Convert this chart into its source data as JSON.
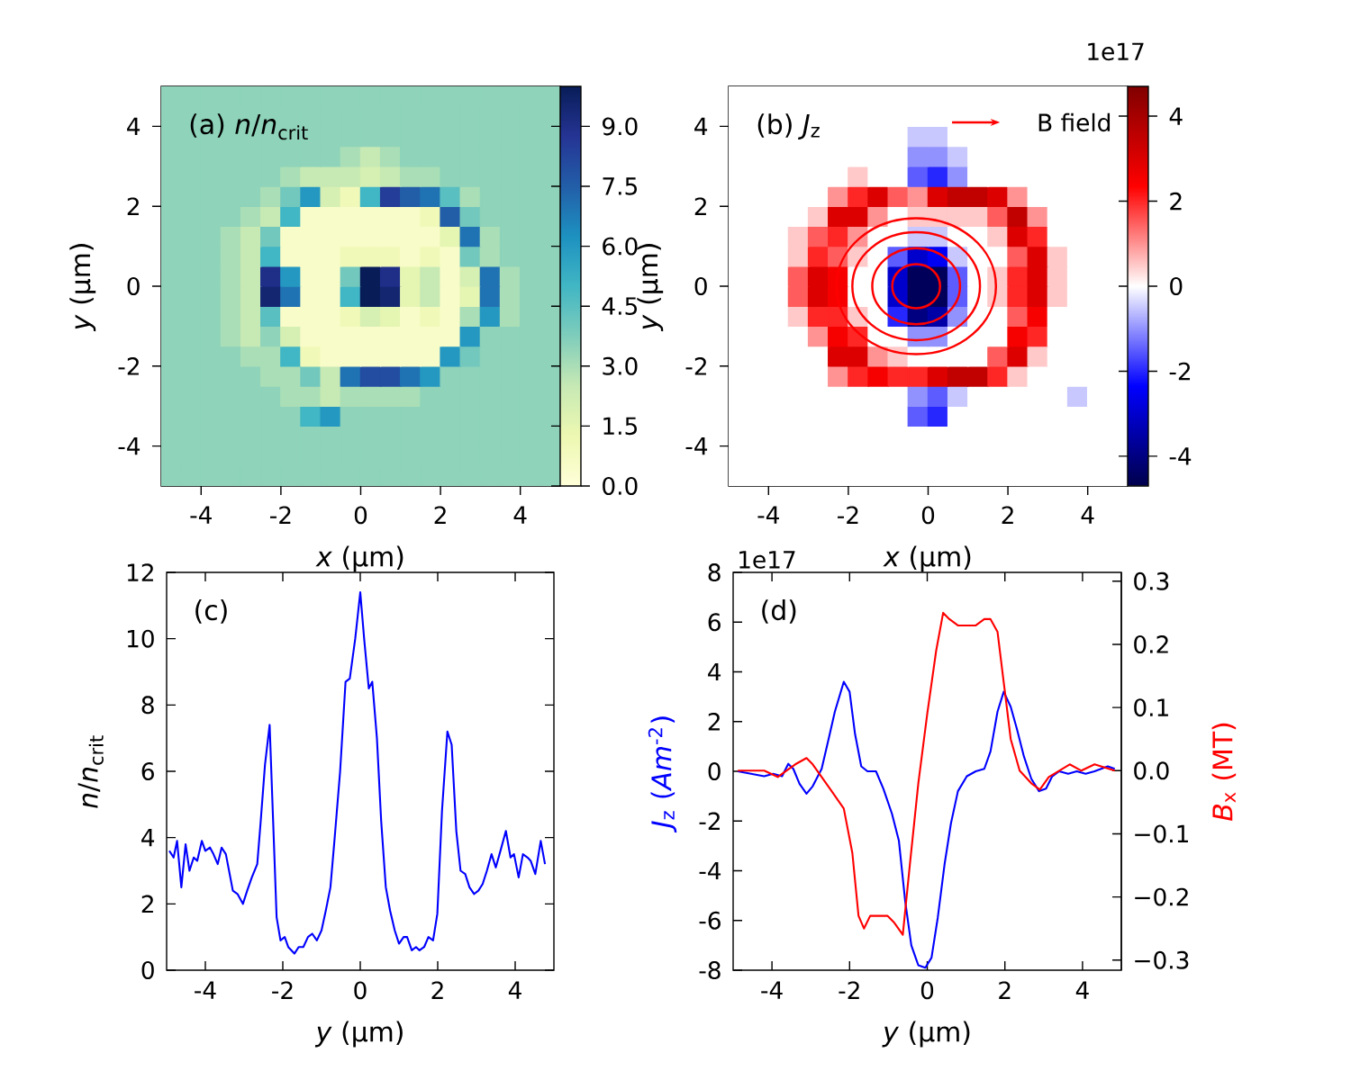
{
  "chart_data": [
    {
      "type": "heatmap",
      "title": "(a) *n*/*n*$_{crit}$",
      "xlabel": "*x* (μm)",
      "ylabel": "*y* (μm)",
      "xlim": [
        -5,
        5
      ],
      "ylim": [
        -5,
        5
      ],
      "xticks": [
        -4,
        -2,
        0,
        2,
        4
      ],
      "yticks": [
        -4,
        -2,
        0,
        2,
        4
      ],
      "clim": [
        0,
        10
      ],
      "cticks": [
        {
          "value": 0,
          "label": "0.0"
        },
        {
          "value": 1.5,
          "label": "1.5"
        },
        {
          "value": 3,
          "label": "3.0"
        },
        {
          "value": 4.5,
          "label": "4.5"
        },
        {
          "value": 6,
          "label": "6.0"
        },
        {
          "value": 7.5,
          "label": "7.5"
        },
        {
          "value": 9,
          "label": "9.0"
        }
      ],
      "cells": [
        [
          3.5,
          3.5,
          3.5,
          3.5,
          3.5,
          3.5,
          3.5,
          3.5,
          3.5,
          3.5,
          3.5,
          3.5,
          3.5,
          3.5,
          3.5,
          3.5,
          3.5,
          3.5,
          3.5,
          3.5
        ],
        [
          3.5,
          3.5,
          3.5,
          3.5,
          3.5,
          3.5,
          3.5,
          3.5,
          3.5,
          3.5,
          3.5,
          3.5,
          3.5,
          3.5,
          3.5,
          3.5,
          3.5,
          3.5,
          3.5,
          3.5
        ],
        [
          3.5,
          3.5,
          3.5,
          3.5,
          3.5,
          3.5,
          3.5,
          3.5,
          3.5,
          3.5,
          3.5,
          3.5,
          3.5,
          3.5,
          3.5,
          3.5,
          3.5,
          3.5,
          3.5,
          3.5
        ],
        [
          3.5,
          3.5,
          3.5,
          3.5,
          3.5,
          3.5,
          3.5,
          3.5,
          3.5,
          3.0,
          2.5,
          3.0,
          3.5,
          3.5,
          3.5,
          3.5,
          3.5,
          3.5,
          3.5,
          3.5
        ],
        [
          3.5,
          3.5,
          3.5,
          3.5,
          3.5,
          3.5,
          3.0,
          2.5,
          2.5,
          2.5,
          2.0,
          2.5,
          3.0,
          3.0,
          3.5,
          3.5,
          3.5,
          3.5,
          3.5,
          3.5
        ],
        [
          3.5,
          3.5,
          3.5,
          3.5,
          3.5,
          3.0,
          4.0,
          6.0,
          2.0,
          1.0,
          5.0,
          8.5,
          7.5,
          7.0,
          4.5,
          3.0,
          3.5,
          3.5,
          3.5,
          3.5
        ],
        [
          3.5,
          3.5,
          3.5,
          3.5,
          3.0,
          2.5,
          5.0,
          0.5,
          0.5,
          0.5,
          0.5,
          0.5,
          0.5,
          1.0,
          7.5,
          4.0,
          3.5,
          3.5,
          3.5,
          3.5
        ],
        [
          3.5,
          3.5,
          3.5,
          3.0,
          2.5,
          4.0,
          0.5,
          0.5,
          0.5,
          0.5,
          0.5,
          0.5,
          0.5,
          0.5,
          1.5,
          7.0,
          3.0,
          3.5,
          3.5,
          3.5
        ],
        [
          3.5,
          3.5,
          3.5,
          3.0,
          2.5,
          5.0,
          0.5,
          0.5,
          0.5,
          1.0,
          1.0,
          1.0,
          0.5,
          1.0,
          0.5,
          4.0,
          3.0,
          3.5,
          3.5,
          3.5
        ],
        [
          3.5,
          3.5,
          3.5,
          3.0,
          2.5,
          9.0,
          6.0,
          0.5,
          0.5,
          4.0,
          10.0,
          9.0,
          1.5,
          2.5,
          0.5,
          2.0,
          7.0,
          3.0,
          3.5,
          3.5
        ],
        [
          3.5,
          3.5,
          3.5,
          3.0,
          2.5,
          9.5,
          7.0,
          0.5,
          0.5,
          5.0,
          10.0,
          9.5,
          1.5,
          2.5,
          0.5,
          1.5,
          7.0,
          3.0,
          3.5,
          3.5
        ],
        [
          3.5,
          3.5,
          3.5,
          3.0,
          2.5,
          4.5,
          0.5,
          0.5,
          0.5,
          1.0,
          2.0,
          1.5,
          0.5,
          1.0,
          0.5,
          3.0,
          6.0,
          3.0,
          3.5,
          3.5
        ],
        [
          3.5,
          3.5,
          3.5,
          3.0,
          2.5,
          3.5,
          2.0,
          0.5,
          0.5,
          0.5,
          0.5,
          0.5,
          0.5,
          0.5,
          0.5,
          6.0,
          3.5,
          3.5,
          3.5,
          3.5
        ],
        [
          3.5,
          3.5,
          3.5,
          3.5,
          3.0,
          3.0,
          5.0,
          1.0,
          0.5,
          0.5,
          0.5,
          0.5,
          0.5,
          0.5,
          6.0,
          4.0,
          3.5,
          3.5,
          3.5,
          3.5
        ],
        [
          3.5,
          3.5,
          3.5,
          3.5,
          3.5,
          3.0,
          3.0,
          4.0,
          2.5,
          7.0,
          8.0,
          8.0,
          7.0,
          6.0,
          3.5,
          3.5,
          3.5,
          3.5,
          3.5,
          3.5
        ],
        [
          3.5,
          3.5,
          3.5,
          3.5,
          3.5,
          3.5,
          3.0,
          3.0,
          2.5,
          3.0,
          3.0,
          3.0,
          3.0,
          3.5,
          3.5,
          3.5,
          3.5,
          3.5,
          3.5,
          3.5
        ],
        [
          3.5,
          3.5,
          3.5,
          3.5,
          3.5,
          3.5,
          3.5,
          5.0,
          6.0,
          3.5,
          3.5,
          3.5,
          3.5,
          3.5,
          3.5,
          3.5,
          3.5,
          3.5,
          3.5,
          3.5
        ],
        [
          3.5,
          3.5,
          3.5,
          3.5,
          3.5,
          3.5,
          3.5,
          3.5,
          3.5,
          3.5,
          3.5,
          3.5,
          3.5,
          3.5,
          3.5,
          3.5,
          3.5,
          3.5,
          3.5,
          3.5
        ],
        [
          3.5,
          3.5,
          3.5,
          3.5,
          3.5,
          3.5,
          3.5,
          3.5,
          3.5,
          3.5,
          3.5,
          3.5,
          3.5,
          3.5,
          3.5,
          3.5,
          3.5,
          3.5,
          3.5,
          3.5
        ],
        [
          3.5,
          3.5,
          3.5,
          3.5,
          3.5,
          3.5,
          3.5,
          3.5,
          3.5,
          3.5,
          3.5,
          3.5,
          3.5,
          3.5,
          3.5,
          3.5,
          3.5,
          3.5,
          3.5,
          3.5
        ]
      ]
    },
    {
      "type": "heatmap",
      "title": "(b) *J*$_{z}$",
      "xlabel": "*x* (μm)",
      "ylabel": "*y* (μm)",
      "clabel": "1e17",
      "xlim": [
        -5,
        5
      ],
      "ylim": [
        -5,
        5
      ],
      "xticks": [
        -4,
        -2,
        0,
        2,
        4
      ],
      "yticks": [
        -4,
        -2,
        0,
        2,
        4
      ],
      "clim": [
        -4.7,
        4.7
      ],
      "cticks": [
        -4,
        -2,
        0,
        2,
        4
      ],
      "annotations": [
        "B field"
      ],
      "cells": [
        [
          0,
          0,
          0,
          0,
          0,
          0,
          0,
          0,
          0,
          0,
          0,
          0,
          0,
          0,
          0,
          0,
          0,
          0,
          0,
          0
        ],
        [
          0,
          0,
          0,
          0,
          0,
          0,
          0,
          0,
          0,
          0,
          0,
          0,
          0,
          0,
          0,
          0,
          0,
          0,
          0,
          0
        ],
        [
          0,
          0,
          0,
          0,
          0,
          0,
          0,
          0,
          0,
          -0.5,
          -0.5,
          0,
          0,
          0,
          0,
          0,
          0,
          0,
          0,
          0
        ],
        [
          0,
          0,
          0,
          0,
          0,
          0,
          0,
          0,
          0,
          -1.0,
          -1.0,
          -0.5,
          0,
          0,
          0,
          0,
          0,
          0,
          0,
          0
        ],
        [
          0,
          0,
          0,
          0,
          0,
          0,
          0.5,
          0,
          0,
          -1.5,
          -2.0,
          -1.0,
          0,
          0,
          0,
          0,
          0,
          0,
          0,
          0
        ],
        [
          0,
          0,
          0,
          0,
          0,
          1.0,
          2.0,
          3.0,
          1.5,
          1.0,
          3.0,
          3.5,
          3.5,
          3.0,
          1.0,
          0,
          0,
          0,
          0,
          0
        ],
        [
          0,
          0,
          0,
          0,
          0.5,
          3.0,
          3.0,
          1.0,
          0,
          0.5,
          0.5,
          0.5,
          0.5,
          1.5,
          3.5,
          1.0,
          0,
          0,
          0,
          0
        ],
        [
          0,
          0,
          0,
          0.5,
          1.5,
          2.0,
          1.0,
          0,
          0,
          -0.5,
          -0.5,
          0,
          0,
          0.5,
          3.0,
          2.0,
          0,
          0,
          0,
          0
        ],
        [
          0,
          0,
          0,
          0.5,
          2.0,
          1.5,
          0.5,
          0,
          -1.5,
          -3.0,
          -2.5,
          -0.5,
          0,
          0,
          1.5,
          3.0,
          0.5,
          0,
          0,
          0
        ],
        [
          0,
          0,
          0,
          1.5,
          3.0,
          2.5,
          0,
          0,
          -3.0,
          -4.5,
          -4.5,
          -1.5,
          0,
          0.5,
          2.0,
          3.0,
          0.5,
          0,
          0,
          0
        ],
        [
          0,
          0,
          0,
          1.5,
          3.0,
          2.5,
          0,
          0,
          -3.0,
          -4.5,
          -4.5,
          -1.5,
          0,
          0.5,
          2.0,
          3.0,
          0.5,
          0,
          0,
          0
        ],
        [
          0,
          0,
          0,
          0.5,
          2.0,
          2.0,
          0.5,
          0,
          -2.0,
          -4.0,
          -3.5,
          -1.0,
          0,
          0,
          1.5,
          2.5,
          0,
          0,
          0,
          0
        ],
        [
          0,
          0,
          0,
          0,
          1.0,
          2.5,
          2.0,
          0,
          0,
          -1.0,
          -1.0,
          0,
          0,
          0,
          2.5,
          2.0,
          0,
          0,
          0,
          0
        ],
        [
          0,
          0,
          0,
          0,
          0,
          3.0,
          3.0,
          1.0,
          0.5,
          0,
          0,
          0,
          0,
          1.5,
          3.0,
          0.5,
          0,
          0,
          0,
          0
        ],
        [
          0,
          0,
          0,
          0,
          0,
          1.0,
          2.0,
          2.5,
          2.0,
          2.0,
          3.0,
          3.5,
          3.5,
          2.0,
          0.5,
          0,
          0,
          0,
          0,
          0
        ],
        [
          0,
          0,
          0,
          0,
          0,
          0,
          0,
          0,
          0,
          -1.0,
          -1.5,
          -0.5,
          0,
          0,
          0,
          0,
          0,
          -0.5,
          0,
          0
        ],
        [
          0,
          0,
          0,
          0,
          0,
          0,
          0,
          0,
          0,
          -1.5,
          -2.0,
          0,
          0,
          0,
          0,
          0,
          0,
          0,
          0,
          0
        ],
        [
          0,
          0,
          0,
          0,
          0,
          0,
          0,
          0,
          0,
          0,
          0,
          0,
          0,
          0,
          0,
          0,
          0,
          0,
          0,
          0
        ],
        [
          0,
          0,
          0,
          0,
          0,
          0,
          0,
          0,
          0,
          0,
          0,
          0,
          0,
          0,
          0,
          0,
          0,
          0,
          0,
          0
        ],
        [
          0,
          0,
          0,
          0,
          0,
          0,
          0,
          0,
          0,
          0,
          0,
          0,
          0,
          0,
          0,
          0,
          0,
          0,
          0,
          0
        ]
      ]
    },
    {
      "type": "line",
      "title": "(c)",
      "xlabel": "*y* (μm)",
      "ylabel": "*n*/*n*$_{crit}$",
      "xlim": [
        -5,
        5
      ],
      "ylim": [
        0,
        12
      ],
      "xticks": [
        -4,
        -2,
        0,
        2,
        4
      ],
      "yticks": [
        0,
        2,
        4,
        6,
        8,
        10,
        12
      ],
      "series": [
        {
          "color": "#0000ff",
          "x": [
            -4.93,
            -4.82,
            -4.73,
            -4.62,
            -4.51,
            -4.41,
            -4.3,
            -4.21,
            -4.09,
            -4.0,
            -3.88,
            -3.79,
            -3.68,
            -3.58,
            -3.47,
            -3.29,
            -3.17,
            -3.03,
            -2.92,
            -2.8,
            -2.66,
            -2.57,
            -2.46,
            -2.34,
            -2.25,
            -2.16,
            -2.06,
            -1.95,
            -1.86,
            -1.7,
            -1.59,
            -1.47,
            -1.35,
            -1.24,
            -1.12,
            -1.0,
            -0.89,
            -0.77,
            -0.66,
            -0.52,
            -0.38,
            -0.27,
            -0.13,
            0.0,
            0.1,
            0.22,
            0.31,
            0.43,
            0.54,
            0.66,
            0.77,
            0.89,
            1.0,
            1.12,
            1.21,
            1.33,
            1.44,
            1.53,
            1.65,
            1.76,
            1.88,
            1.99,
            2.11,
            2.25,
            2.36,
            2.48,
            2.59,
            2.71,
            2.82,
            2.94,
            3.05,
            3.16,
            3.27,
            3.39,
            3.5,
            3.62,
            3.76,
            3.88,
            3.97,
            4.09,
            4.2,
            4.32,
            4.4,
            4.52,
            4.66,
            4.77
          ],
          "values": [
            3.6,
            3.4,
            3.9,
            2.5,
            3.8,
            3.0,
            3.4,
            3.3,
            3.9,
            3.6,
            3.7,
            3.5,
            3.2,
            3.7,
            3.5,
            2.4,
            2.3,
            2.0,
            2.4,
            2.8,
            3.2,
            4.5,
            6.2,
            7.4,
            4.5,
            1.6,
            0.9,
            1.0,
            0.7,
            0.5,
            0.7,
            0.7,
            1.0,
            1.1,
            0.9,
            1.2,
            1.8,
            2.5,
            4.0,
            6.0,
            8.7,
            8.8,
            10.0,
            11.4,
            10.0,
            8.5,
            8.7,
            7.0,
            4.5,
            2.5,
            1.8,
            1.2,
            0.8,
            1.0,
            1.0,
            0.6,
            0.7,
            0.6,
            0.7,
            1.0,
            0.9,
            1.7,
            4.8,
            7.2,
            6.8,
            4.2,
            3.0,
            2.9,
            2.5,
            2.3,
            2.4,
            2.6,
            3.0,
            3.5,
            3.1,
            3.6,
            4.2,
            3.4,
            3.5,
            2.8,
            3.5,
            3.4,
            3.3,
            2.9,
            3.9,
            3.2
          ]
        }
      ]
    },
    {
      "type": "line",
      "title": "(d)",
      "xlabel": "*y* (μm)",
      "ylabel": "*J*$_{z}$ (*Am*$^{-2}$)",
      "y2label": "*B*$_{x}$ (MT)",
      "annotations": [
        "1e17"
      ],
      "xlim": [
        -5,
        5
      ],
      "ylim": [
        -8,
        8
      ],
      "xticks": [
        -4,
        -2,
        0,
        2,
        4
      ],
      "yticks": [
        -8,
        -6,
        -4,
        -2,
        0,
        2,
        4,
        6,
        8
      ],
      "y2lim": [
        -0.316,
        0.314
      ],
      "y2ticks": [
        {
          "value": -0.3,
          "label": "−0.3"
        },
        {
          "value": -0.2,
          "label": "−0.2"
        },
        {
          "value": -0.1,
          "label": "−0.1"
        },
        {
          "value": 0,
          "label": "0.0"
        },
        {
          "value": 0.1,
          "label": "0.1"
        },
        {
          "value": 0.2,
          "label": "0.2"
        },
        {
          "value": 0.3,
          "label": "0.3"
        }
      ],
      "series": [
        {
          "color": "#0000ff",
          "x": [
            -4.88,
            -4.54,
            -4.2,
            -3.97,
            -3.74,
            -3.58,
            -3.45,
            -3.29,
            -3.11,
            -2.95,
            -2.72,
            -2.54,
            -2.38,
            -2.15,
            -2.0,
            -1.86,
            -1.7,
            -1.54,
            -1.32,
            -1.13,
            -0.91,
            -0.73,
            -0.57,
            -0.41,
            -0.23,
            -0.05,
            0.11,
            0.27,
            0.45,
            0.61,
            0.79,
            1.02,
            1.25,
            1.47,
            1.63,
            1.81,
            1.97,
            2.15,
            2.31,
            2.49,
            2.68,
            2.88,
            3.06,
            3.22,
            3.4,
            3.63,
            3.85,
            4.08,
            4.31,
            4.65,
            4.83
          ],
          "values": [
            0,
            -0.1,
            -0.2,
            -0.1,
            -0.2,
            0.3,
            0.1,
            -0.5,
            -0.9,
            -0.6,
            0.1,
            1.3,
            2.4,
            3.6,
            3.2,
            1.5,
            0.2,
            0,
            0,
            -0.7,
            -1.7,
            -2.8,
            -5.2,
            -7.0,
            -7.8,
            -7.9,
            -7.5,
            -5.9,
            -3.7,
            -2.1,
            -0.8,
            -0.2,
            0,
            0.1,
            0.8,
            2.4,
            3.2,
            2.6,
            1.7,
            0.6,
            -0.3,
            -0.8,
            -0.7,
            -0.2,
            0,
            -0.1,
            0,
            -0.1,
            0,
            0.2,
            0.1
          ]
        },
        {
          "color": "#ff0000",
          "axis": "y2",
          "x": [
            -4.88,
            -4.54,
            -4.2,
            -3.85,
            -3.63,
            -3.4,
            -3.11,
            -2.95,
            -2.72,
            -2.49,
            -2.15,
            -1.93,
            -1.77,
            -1.63,
            -1.47,
            -1.25,
            -1.02,
            -0.86,
            -0.63,
            -0.45,
            -0.23,
            0,
            0.23,
            0.41,
            0.57,
            0.79,
            1.02,
            1.25,
            1.47,
            1.63,
            1.81,
            1.97,
            2.15,
            2.38,
            2.68,
            2.9,
            3.13,
            3.4,
            3.67,
            3.97,
            4.31,
            4.83
          ],
          "values": [
            0,
            0,
            0,
            -0.01,
            0,
            0.01,
            0.02,
            0.01,
            -0.01,
            -0.03,
            -0.06,
            -0.13,
            -0.23,
            -0.25,
            -0.23,
            -0.23,
            -0.23,
            -0.24,
            -0.26,
            -0.15,
            -0.02,
            0.09,
            0.19,
            0.25,
            0.24,
            0.23,
            0.23,
            0.23,
            0.24,
            0.24,
            0.22,
            0.14,
            0.05,
            0,
            -0.02,
            -0.03,
            -0.01,
            0,
            0.01,
            0,
            0.01,
            0
          ]
        }
      ]
    }
  ]
}
